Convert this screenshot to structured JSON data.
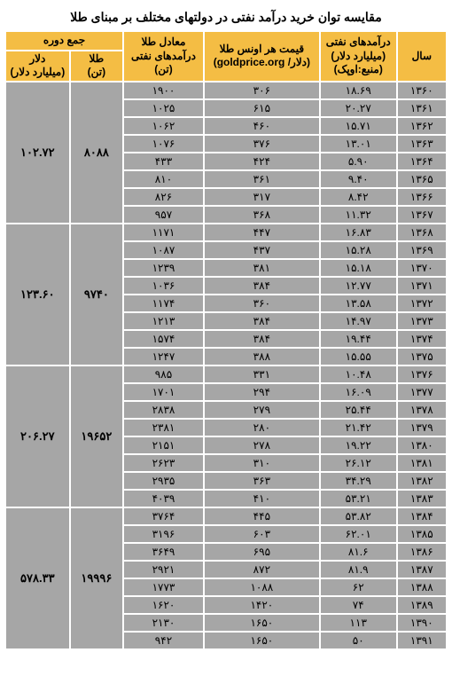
{
  "title": "مقایسه توان خرید درآمد نفتی در دولتهای مختلف بر مبنای طلا",
  "headers": {
    "year": "سال",
    "oil_rev_l1": "درآمدهای نفتی",
    "oil_rev_l2": "(میلیارد دلار)",
    "oil_rev_l3": "(منبع:اوپک)",
    "gold_l1": "قیمت هر اونس طلا",
    "gold_l2": "(دلار/ goldprice.org)",
    "eq_l1": "معادل طلا",
    "eq_l2": "درآمدهای نفتی (تن)",
    "period_sum": "جمع دوره",
    "ton_l1": "طلا",
    "ton_l2": "(تن)",
    "dol_l1": "دلار",
    "dol_l2": "(میلیارد دلار)"
  },
  "groups": [
    {
      "ton": "۸۰۸۸",
      "dollar": "۱۰۲.۷۲",
      "rows": [
        {
          "y": "۱۳۶۰",
          "r": "۱۸.۶۹",
          "g": "۳۰۶",
          "e": "۱۹۰۰"
        },
        {
          "y": "۱۳۶۱",
          "r": "۲۰.۲۷",
          "g": "۶۱۵",
          "e": "۱۰۲۵"
        },
        {
          "y": "۱۳۶۲",
          "r": "۱۵.۷۱",
          "g": "۴۶۰",
          "e": "۱۰۶۲"
        },
        {
          "y": "۱۳۶۳",
          "r": "۱۳.۰۱",
          "g": "۳۷۶",
          "e": "۱۰۷۶"
        },
        {
          "y": "۱۳۶۴",
          "r": "۵.۹۰",
          "g": "۴۲۴",
          "e": "۴۳۳"
        },
        {
          "y": "۱۳۶۵",
          "r": "۹.۴۰",
          "g": "۳۶۱",
          "e": "۸۱۰"
        },
        {
          "y": "۱۳۶۶",
          "r": "۸.۴۲",
          "g": "۳۱۷",
          "e": "۸۲۶"
        },
        {
          "y": "۱۳۶۷",
          "r": "۱۱.۳۲",
          "g": "۳۶۸",
          "e": "۹۵۷"
        }
      ]
    },
    {
      "ton": "۹۷۴۰",
      "dollar": "۱۲۳.۶۰",
      "rows": [
        {
          "y": "۱۳۶۸",
          "r": "۱۶.۸۳",
          "g": "۴۴۷",
          "e": "۱۱۷۱"
        },
        {
          "y": "۱۳۶۹",
          "r": "۱۵.۲۸",
          "g": "۴۳۷",
          "e": "۱۰۸۷"
        },
        {
          "y": "۱۳۷۰",
          "r": "۱۵.۱۸",
          "g": "۳۸۱",
          "e": "۱۲۳۹"
        },
        {
          "y": "۱۳۷۱",
          "r": "۱۲.۷۷",
          "g": "۳۸۴",
          "e": "۱۰۳۶"
        },
        {
          "y": "۱۳۷۲",
          "r": "۱۳.۵۸",
          "g": "۳۶۰",
          "e": "۱۱۷۴"
        },
        {
          "y": "۱۳۷۳",
          "r": "۱۴.۹۷",
          "g": "۳۸۴",
          "e": "۱۲۱۳"
        },
        {
          "y": "۱۳۷۴",
          "r": "۱۹.۴۴",
          "g": "۳۸۴",
          "e": "۱۵۷۴"
        },
        {
          "y": "۱۳۷۵",
          "r": "۱۵.۵۵",
          "g": "۳۸۸",
          "e": "۱۲۴۷"
        }
      ]
    },
    {
      "ton": "۱۹۶۵۲",
      "dollar": "۲۰۶.۲۷",
      "rows": [
        {
          "y": "۱۳۷۶",
          "r": "۱۰.۴۸",
          "g": "۳۳۱",
          "e": "۹۸۵"
        },
        {
          "y": "۱۳۷۷",
          "r": "۱۶.۰۹",
          "g": "۲۹۴",
          "e": "۱۷۰۱"
        },
        {
          "y": "۱۳۷۸",
          "r": "۲۵.۴۴",
          "g": "۲۷۹",
          "e": "۲۸۳۸"
        },
        {
          "y": "۱۳۷۹",
          "r": "۲۱.۴۲",
          "g": "۲۸۰",
          "e": "۲۳۸۱"
        },
        {
          "y": "۱۳۸۰",
          "r": "۱۹.۲۲",
          "g": "۲۷۸",
          "e": "۲۱۵۱"
        },
        {
          "y": "۱۳۸۱",
          "r": "۲۶.۱۲",
          "g": "۳۱۰",
          "e": "۲۶۲۳"
        },
        {
          "y": "۱۳۸۲",
          "r": "۳۴.۲۹",
          "g": "۳۶۳",
          "e": "۲۹۳۵"
        },
        {
          "y": "۱۳۸۳",
          "r": "۵۳.۲۱",
          "g": "۴۱۰",
          "e": "۴۰۳۹"
        }
      ]
    },
    {
      "ton": "۱۹۹۹۶",
      "dollar": "۵۷۸.۳۳",
      "rows": [
        {
          "y": "۱۳۸۴",
          "r": "۵۳.۸۲",
          "g": "۴۴۵",
          "e": "۳۷۶۴"
        },
        {
          "y": "۱۳۸۵",
          "r": "۶۲.۰۱",
          "g": "۶۰۳",
          "e": "۳۱۹۶"
        },
        {
          "y": "۱۳۸۶",
          "r": "۸۱.۶",
          "g": "۶۹۵",
          "e": "۳۶۴۹"
        },
        {
          "y": "۱۳۸۷",
          "r": "۸۱.۹",
          "g": "۸۷۲",
          "e": "۲۹۲۱"
        },
        {
          "y": "۱۳۸۸",
          "r": "۶۲",
          "g": "۱۰۸۸",
          "e": "۱۷۷۳"
        },
        {
          "y": "۱۳۸۹",
          "r": "۷۴",
          "g": "۱۴۲۰",
          "e": "۱۶۲۰"
        },
        {
          "y": "۱۳۹۰",
          "r": "۱۱۳",
          "g": "۱۶۵۰",
          "e": "۲۱۳۰"
        },
        {
          "y": "۱۳۹۱",
          "r": "۵۰",
          "g": "۱۶۵۰",
          "e": "۹۴۲"
        }
      ]
    }
  ]
}
